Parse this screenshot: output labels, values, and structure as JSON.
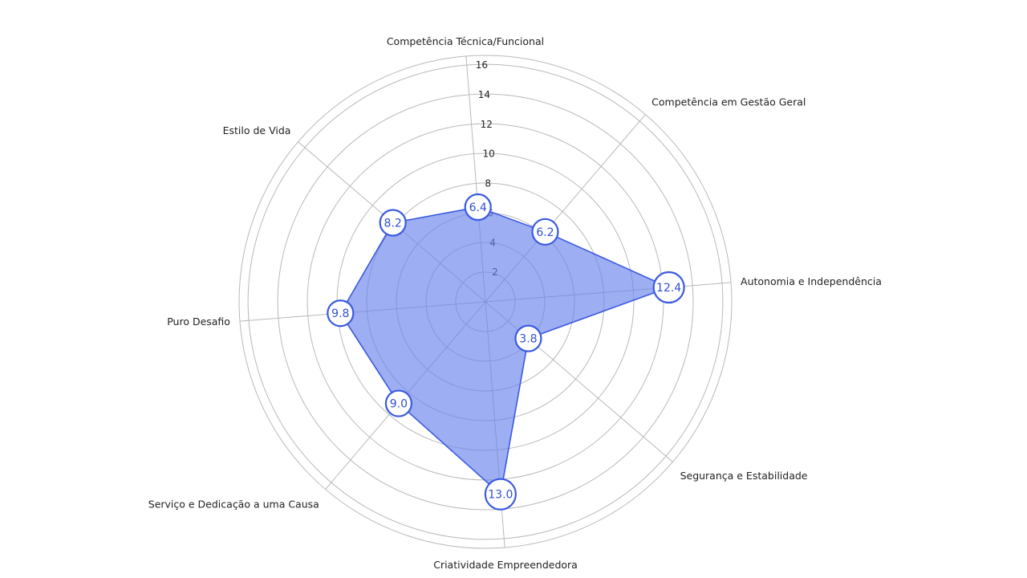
{
  "chart_data": {
    "type": "radar",
    "title": "",
    "categories": [
      "Competência Técnica/Funcional",
      "Competência em Gestão Geral",
      "Autonomia e Independência",
      "Segurança e Estabilidade",
      "Criatividade Empreendedora",
      "Serviço e Dedicação a uma Causa",
      "Puro Desafio",
      "Estilo de Vida"
    ],
    "series": [
      {
        "values": [
          6.4,
          6.2,
          12.4,
          3.8,
          13.0,
          9.0,
          9.8,
          8.2
        ],
        "value_labels": [
          "6.4",
          "6.2",
          "12.4",
          "3.8",
          "13.0",
          "9.0",
          "9.8",
          "8.2"
        ]
      }
    ],
    "radial_axis": {
      "range": [
        0,
        16.6
      ],
      "ticks": [
        2,
        4,
        6,
        8,
        10,
        12,
        14,
        16
      ],
      "tick_labels": [
        "2",
        "4",
        "6",
        "8",
        "10",
        "12",
        "14",
        "16"
      ]
    },
    "grid": true,
    "legend": "none",
    "colors": {
      "area_fill": "#6a82ec",
      "area_stroke": "#3a5ae0",
      "point_stroke": "#3a5ae0",
      "point_text": "#2f4fd4",
      "grid": "#b9b9b9",
      "text": "#222222"
    }
  }
}
